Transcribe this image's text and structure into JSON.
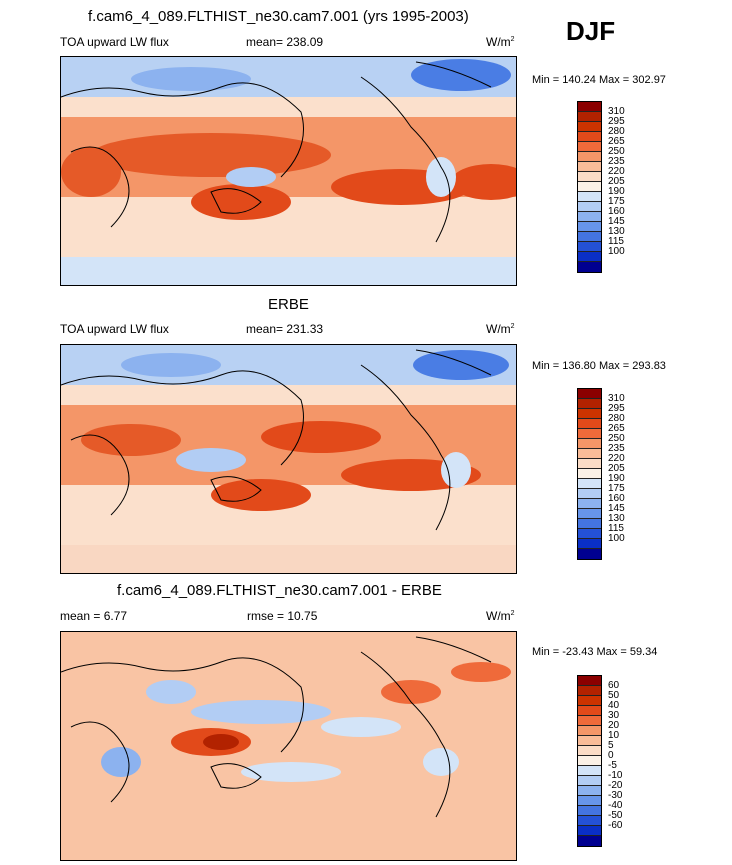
{
  "season": "DJF",
  "panels": [
    {
      "title": "f.cam6_4_089.FLTHIST_ne30.cam7.001 (yrs 1995-2003)",
      "left_label": "TOA upward LW flux",
      "center_label": "mean= 238.09",
      "units": "W/m",
      "units_sup": "2",
      "minmax": "Min = 140.24 Max = 302.97",
      "colorbar_labels": [
        "310",
        "295",
        "280",
        "265",
        "250",
        "235",
        "220",
        "205",
        "190",
        "175",
        "160",
        "145",
        "130",
        "115",
        "100"
      ]
    },
    {
      "title": "ERBE",
      "left_label": "TOA upward LW flux",
      "center_label": "mean= 231.33",
      "units": "W/m",
      "units_sup": "2",
      "minmax": "Min = 136.80 Max = 293.83",
      "colorbar_labels": [
        "310",
        "295",
        "280",
        "265",
        "250",
        "235",
        "220",
        "205",
        "190",
        "175",
        "160",
        "145",
        "130",
        "115",
        "100"
      ]
    },
    {
      "title": "f.cam6_4_089.FLTHIST_ne30.cam7.001 - ERBE",
      "left_label": "mean =   6.77",
      "center_label": "rmse =  10.75",
      "units": "W/m",
      "units_sup": "2",
      "minmax": "Min = -23.43 Max =  59.34",
      "colorbar_labels": [
        "60",
        "50",
        "40",
        "30",
        "20",
        "10",
        "5",
        "0",
        "-5",
        "-10",
        "-20",
        "-30",
        "-40",
        "-50",
        "-60"
      ]
    }
  ],
  "colorbar_colors": [
    "#8b0000",
    "#b22200",
    "#cc3300",
    "#e24a1a",
    "#ef6a3a",
    "#f49668",
    "#f9bc98",
    "#fbdcc6",
    "#fbf1e6",
    "#d3e4f8",
    "#b2cdf4",
    "#8cb2ef",
    "#6795ea",
    "#4474e0",
    "#2451d6",
    "#0a2fc6",
    "#000090"
  ]
}
